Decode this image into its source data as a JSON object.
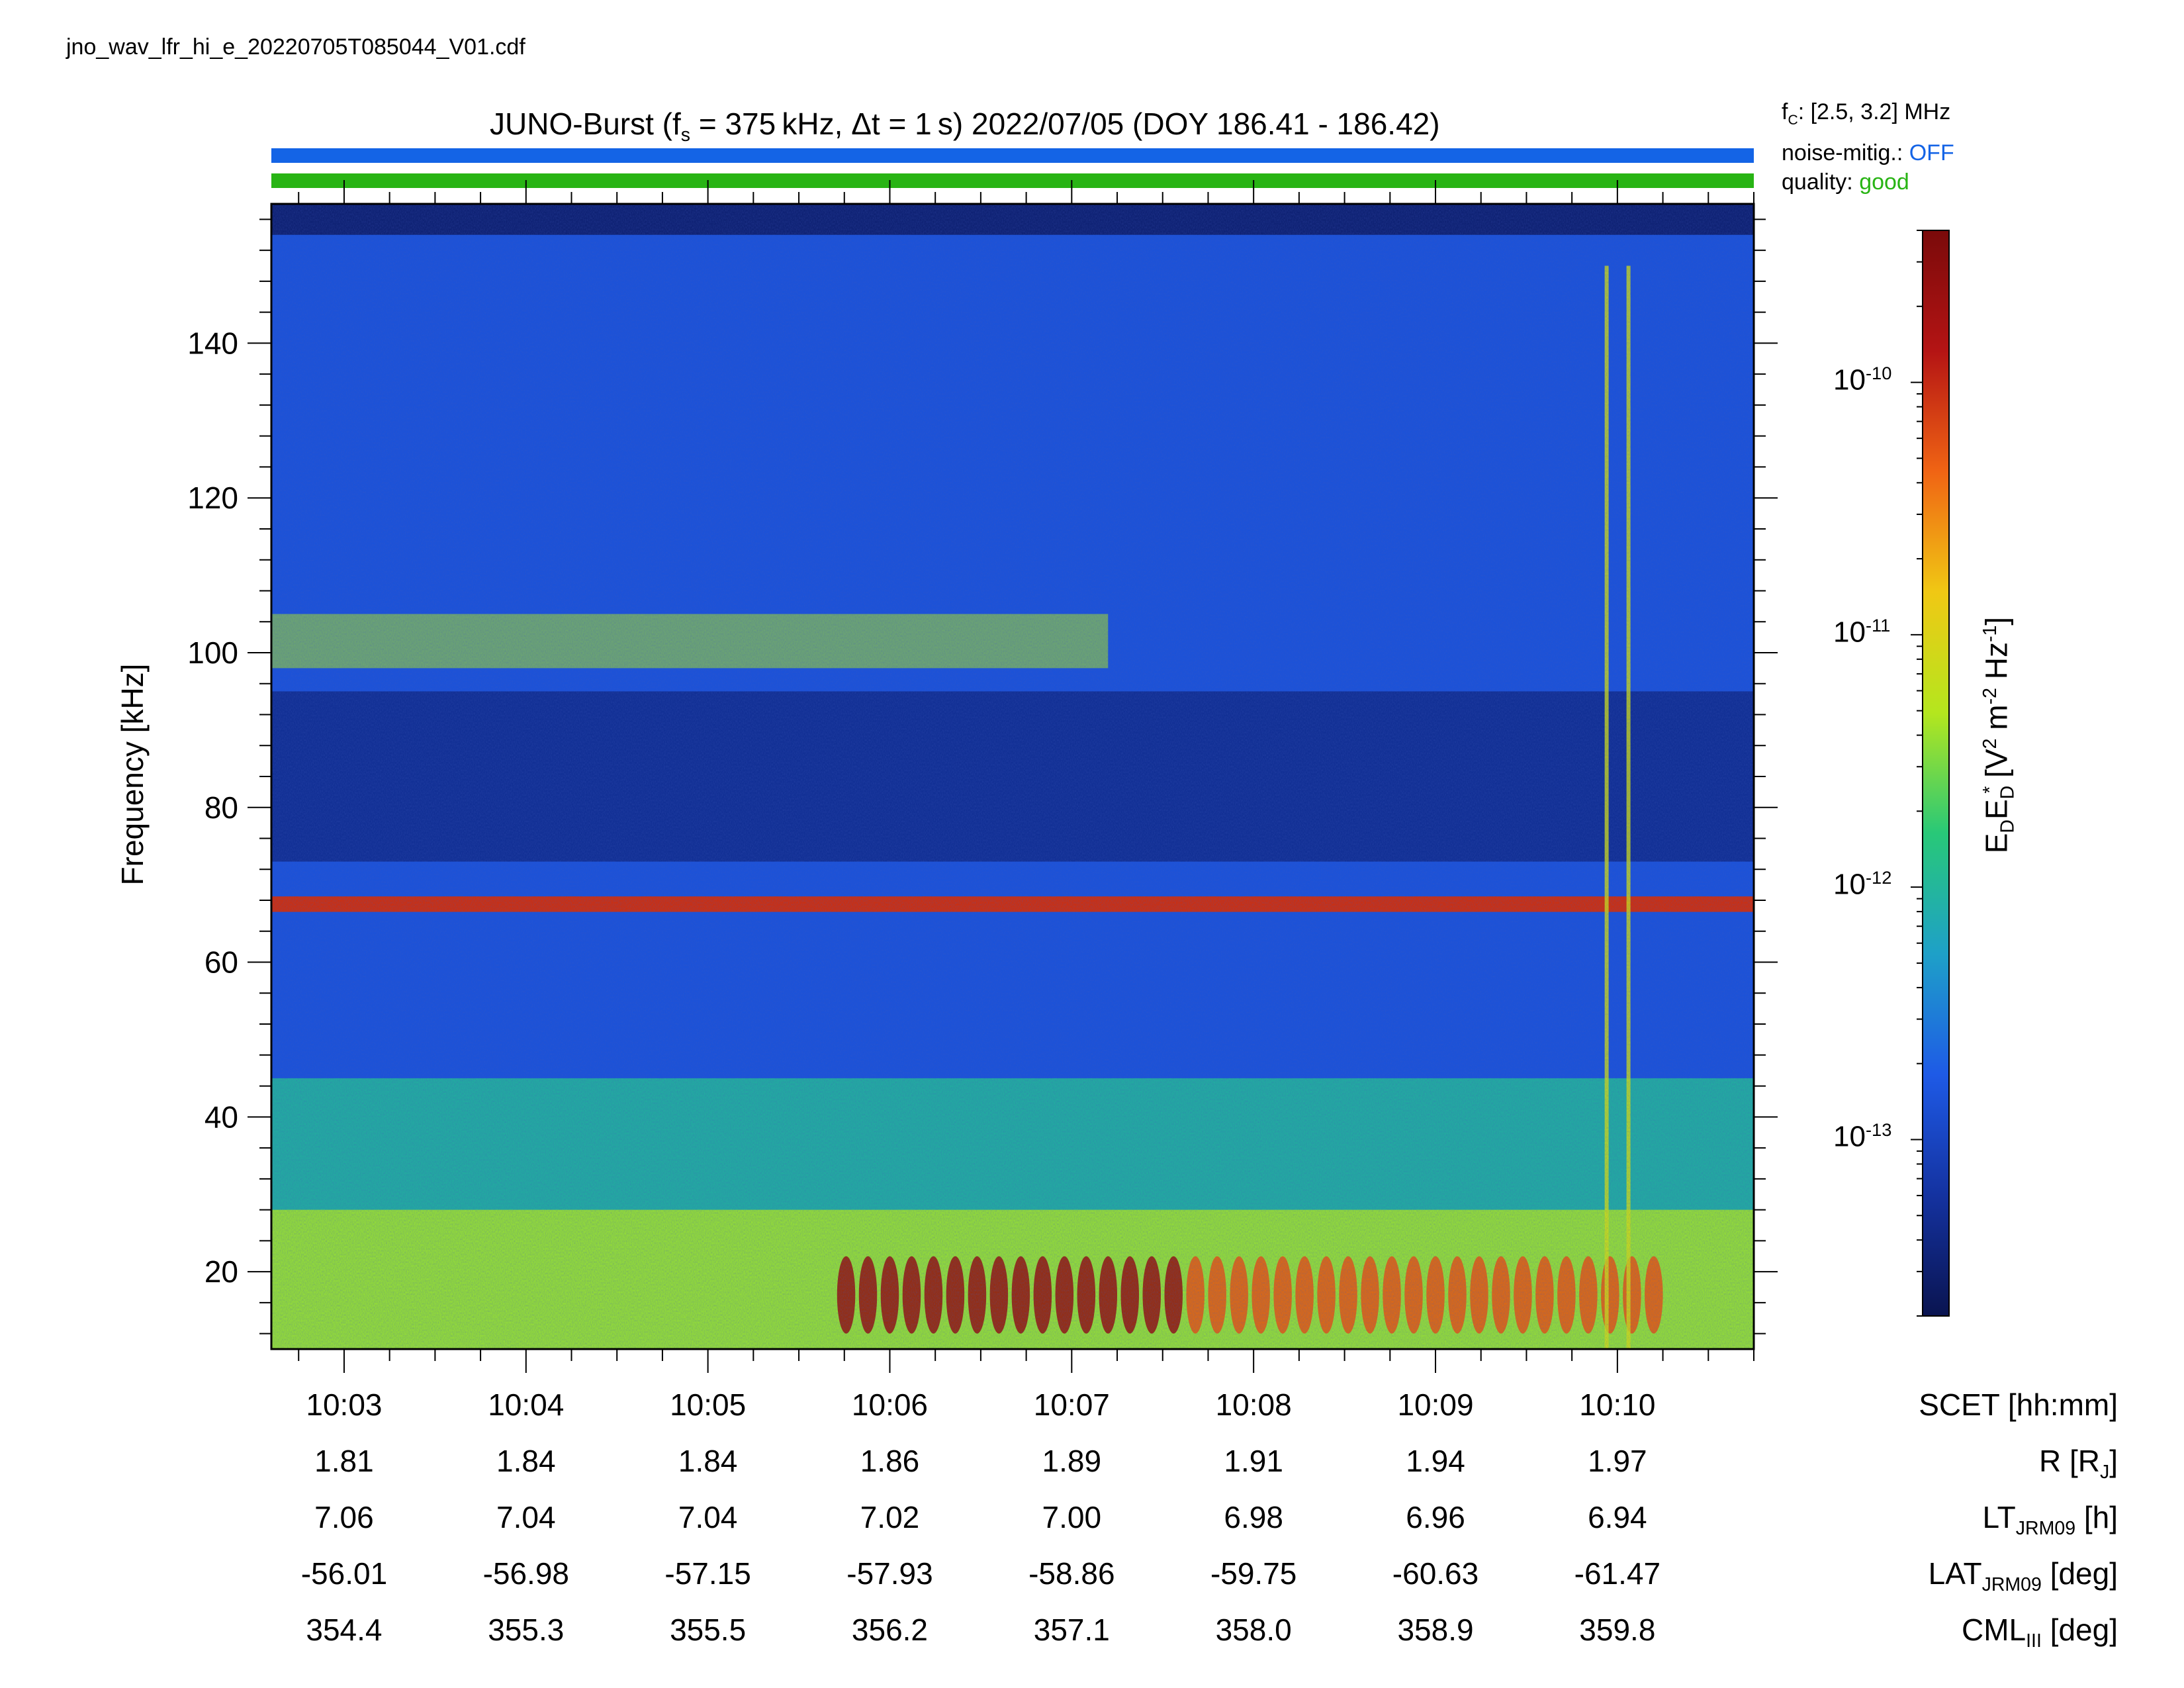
{
  "file_name": "jno_wav_lfr_hi_e_20220705T085044_V01.cdf",
  "title": {
    "prefix": "JUNO-Burst (f",
    "fs_sub": "s",
    "mid": " = 375 kHz, Δt = 1 s)  2022/07/05 (DOY 186.41 - 186.42)"
  },
  "status": {
    "fc_label": "f",
    "fc_sub": "C",
    "fc_value": ": [2.5, 3.2] MHz",
    "noise_label": "noise-mitig.:",
    "noise_value": "OFF",
    "quality_label": "quality:",
    "quality_value": "good",
    "noise_color": "#1464e6",
    "quality_color": "#28b414"
  },
  "chart_data": {
    "type": "heatmap",
    "ylabel": "Frequency [kHz]",
    "ylim": [
      10,
      158
    ],
    "yticks": [
      20,
      40,
      60,
      80,
      100,
      120,
      140
    ],
    "x_range_minutes": [
      602.6,
      610.75
    ],
    "x_tick_labels": [
      "10:03",
      "10:04",
      "10:05",
      "10:06",
      "10:07",
      "10:08",
      "10:09",
      "10:10"
    ],
    "x_tick_minutes": [
      603,
      604,
      605,
      606,
      607,
      608,
      609,
      610
    ],
    "colorbar": {
      "label_main": "E",
      "label_sub1": "D",
      "label_mid": "E",
      "label_sup": "*",
      "label_sub2": "D",
      "label_units": " [V",
      "label_u2": "2",
      "label_u3": " m",
      "label_u4": "-2",
      "label_u5": " Hz",
      "label_u6": "-1",
      "label_end": "]",
      "scale": "log",
      "range": [
        2e-14,
        4e-10
      ],
      "tick_values": [
        1e-10,
        1e-11,
        1e-12,
        1e-13
      ],
      "tick_base": "10",
      "tick_exps": [
        "-10",
        "-11",
        "-12",
        "-13"
      ],
      "colormap": [
        "#0a1450",
        "#1432a0",
        "#1e5ae6",
        "#1ea0c8",
        "#28c878",
        "#b4e61e",
        "#f0c814",
        "#f06414",
        "#b41414",
        "#7a0a0a"
      ]
    },
    "features": [
      {
        "name": "steady line",
        "freq_khz": 67.5,
        "intensity": 0.85
      },
      {
        "name": "band",
        "freq_khz_range": [
          98,
          105
        ],
        "intensity": 0.55
      },
      {
        "name": "intense burst",
        "freq_khz_range": [
          12,
          24
        ],
        "minutes_range": [
          605.7,
          607.6
        ],
        "intensity": 0.95
      }
    ],
    "ephemeris_rows": [
      {
        "label": "SCET [hh:mm]",
        "values": [
          "10:03",
          "10:04",
          "10:05",
          "10:06",
          "10:07",
          "10:08",
          "10:09",
          "10:10"
        ]
      },
      {
        "label_main": "R [R",
        "label_sub": "J",
        "label_end": "]",
        "values": [
          "1.81",
          "1.84",
          "1.84",
          "1.86",
          "1.89",
          "1.91",
          "1.94",
          "1.97"
        ]
      },
      {
        "label_main": "LT",
        "label_sub": "JRM09",
        "label_end": " [h]",
        "values": [
          "7.06",
          "7.04",
          "7.04",
          "7.02",
          "7.00",
          "6.98",
          "6.96",
          "6.94"
        ]
      },
      {
        "label_main": "LAT",
        "label_sub": "JRM09",
        "label_end": " [deg]",
        "values": [
          "-56.01",
          "-56.98",
          "-57.15",
          "-57.93",
          "-58.86",
          "-59.75",
          "-60.63",
          "-61.47"
        ]
      },
      {
        "label_main": "CML",
        "label_sub": "III",
        "label_end": " [deg]",
        "values": [
          "354.4",
          "355.3",
          "355.5",
          "356.2",
          "357.1",
          "358.0",
          "358.9",
          "359.8"
        ]
      }
    ]
  }
}
